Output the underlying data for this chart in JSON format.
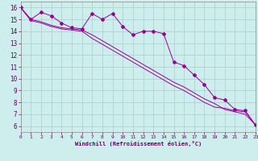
{
  "xlabel": "Windchill (Refroidissement éolien,°C)",
  "bg_color": "#ceeeed",
  "grid_color": "#aacccc",
  "line_color": "#990099",
  "x": [
    0,
    1,
    2,
    3,
    4,
    5,
    6,
    7,
    8,
    9,
    10,
    11,
    12,
    13,
    14,
    15,
    16,
    17,
    18,
    19,
    20,
    21,
    22,
    23
  ],
  "line1": [
    16.0,
    15.0,
    15.6,
    15.3,
    14.7,
    14.3,
    14.2,
    15.5,
    15.0,
    15.5,
    14.4,
    13.7,
    14.0,
    14.0,
    13.8,
    11.4,
    11.1,
    10.3,
    9.5,
    8.4,
    8.2,
    7.4,
    7.3,
    6.1
  ],
  "line2": [
    16.0,
    15.0,
    14.8,
    14.5,
    14.3,
    14.2,
    14.1,
    13.7,
    13.2,
    12.7,
    12.2,
    11.7,
    11.2,
    10.7,
    10.2,
    9.7,
    9.3,
    8.8,
    8.3,
    7.9,
    7.4,
    7.2,
    7.0,
    6.1
  ],
  "line3": [
    16.0,
    14.9,
    14.7,
    14.4,
    14.2,
    14.1,
    14.0,
    13.4,
    12.9,
    12.4,
    11.9,
    11.4,
    10.9,
    10.4,
    9.9,
    9.4,
    9.0,
    8.5,
    8.0,
    7.6,
    7.5,
    7.3,
    7.2,
    6.1
  ],
  "xlim": [
    0,
    23
  ],
  "ylim": [
    5.5,
    16.5
  ],
  "yticks": [
    6,
    7,
    8,
    9,
    10,
    11,
    12,
    13,
    14,
    15,
    16
  ],
  "xticks": [
    0,
    1,
    2,
    3,
    4,
    5,
    6,
    7,
    8,
    9,
    10,
    11,
    12,
    13,
    14,
    15,
    16,
    17,
    18,
    19,
    20,
    21,
    22,
    23
  ]
}
